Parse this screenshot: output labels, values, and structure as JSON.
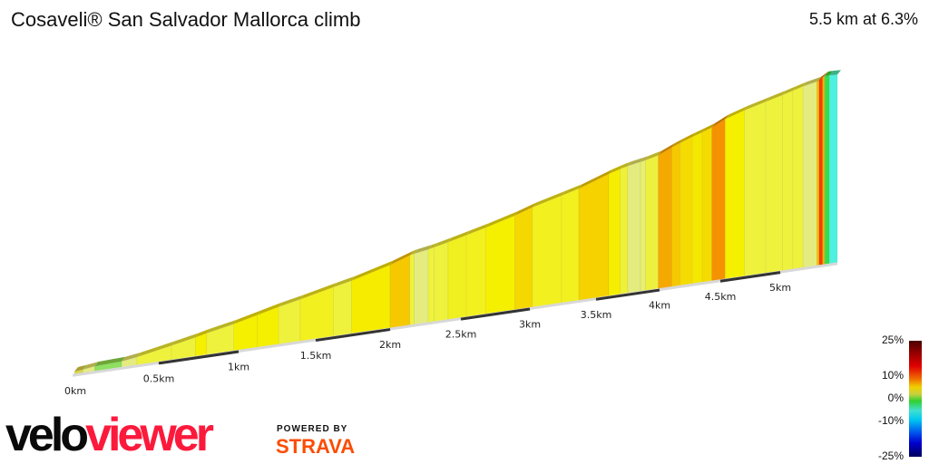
{
  "title": "Cosaveli® San Salvador Mallorca climb",
  "summary": "5.5 km at 6.3%",
  "chart_data": {
    "type": "area",
    "title": "Cosaveli® San Salvador Mallorca climb",
    "x_unit": "km",
    "x_ticks": [
      "0km",
      "0.5km",
      "1km",
      "1.5km",
      "2km",
      "2.5km",
      "3km",
      "3.5km",
      "4km",
      "4.5km",
      "5km"
    ],
    "total_distance_km": 5.5,
    "average_gradient_pct": 6.3,
    "segments": [
      {
        "start": 0.0,
        "end": 0.05,
        "gradient": 3,
        "color": "#d8d850"
      },
      {
        "start": 0.05,
        "end": 0.12,
        "gradient": 4,
        "color": "#e4ec80"
      },
      {
        "start": 0.12,
        "end": 0.28,
        "gradient": 1,
        "color": "#8ee060"
      },
      {
        "start": 0.28,
        "end": 0.37,
        "gradient": 4,
        "color": "#e4ec80"
      },
      {
        "start": 0.37,
        "end": 0.58,
        "gradient": 5.5,
        "color": "#eef23c"
      },
      {
        "start": 0.58,
        "end": 0.73,
        "gradient": 5.5,
        "color": "#eef23c"
      },
      {
        "start": 0.73,
        "end": 0.8,
        "gradient": 6.5,
        "color": "#f5f000"
      },
      {
        "start": 0.8,
        "end": 0.97,
        "gradient": 5.5,
        "color": "#eef23c"
      },
      {
        "start": 0.97,
        "end": 1.12,
        "gradient": 6.5,
        "color": "#f5f000"
      },
      {
        "start": 1.12,
        "end": 1.26,
        "gradient": 6.5,
        "color": "#f5f000"
      },
      {
        "start": 1.26,
        "end": 1.4,
        "gradient": 5.5,
        "color": "#eef23c"
      },
      {
        "start": 1.4,
        "end": 1.62,
        "gradient": 6,
        "color": "#f3f020"
      },
      {
        "start": 1.62,
        "end": 1.74,
        "gradient": 5.5,
        "color": "#eef23c"
      },
      {
        "start": 1.74,
        "end": 2.0,
        "gradient": 7,
        "color": "#f5ec00"
      },
      {
        "start": 2.0,
        "end": 2.14,
        "gradient": 8.5,
        "color": "#f5c800"
      },
      {
        "start": 2.14,
        "end": 2.17,
        "gradient": 5.5,
        "color": "#eef23c"
      },
      {
        "start": 2.17,
        "end": 2.27,
        "gradient": 4,
        "color": "#e4ec80"
      },
      {
        "start": 2.27,
        "end": 2.31,
        "gradient": 5.5,
        "color": "#eef23c"
      },
      {
        "start": 2.31,
        "end": 2.41,
        "gradient": 5.5,
        "color": "#eef23c"
      },
      {
        "start": 2.41,
        "end": 2.54,
        "gradient": 6,
        "color": "#f0f020"
      },
      {
        "start": 2.54,
        "end": 2.68,
        "gradient": 6,
        "color": "#f3f020"
      },
      {
        "start": 2.68,
        "end": 2.89,
        "gradient": 6.5,
        "color": "#f5f000"
      },
      {
        "start": 2.89,
        "end": 3.02,
        "gradient": 8,
        "color": "#f5d800"
      },
      {
        "start": 3.02,
        "end": 3.24,
        "gradient": 6,
        "color": "#f3f020"
      },
      {
        "start": 3.24,
        "end": 3.37,
        "gradient": 6,
        "color": "#f3f020"
      },
      {
        "start": 3.37,
        "end": 3.6,
        "gradient": 8,
        "color": "#f5d200"
      },
      {
        "start": 3.6,
        "end": 3.69,
        "gradient": 6.5,
        "color": "#f5ee00"
      },
      {
        "start": 3.69,
        "end": 3.75,
        "gradient": 5.5,
        "color": "#eef03a"
      },
      {
        "start": 3.75,
        "end": 3.85,
        "gradient": 4,
        "color": "#e4ec80"
      },
      {
        "start": 3.85,
        "end": 3.89,
        "gradient": 4,
        "color": "#e8ee70"
      },
      {
        "start": 3.89,
        "end": 3.99,
        "gradient": 5.5,
        "color": "#eef040"
      },
      {
        "start": 3.99,
        "end": 4.1,
        "gradient": 9.5,
        "color": "#f5a800"
      },
      {
        "start": 4.1,
        "end": 4.17,
        "gradient": 8.5,
        "color": "#f5c800"
      },
      {
        "start": 4.17,
        "end": 4.27,
        "gradient": 7.5,
        "color": "#f5dc00"
      },
      {
        "start": 4.27,
        "end": 4.35,
        "gradient": 7,
        "color": "#f5e800"
      },
      {
        "start": 4.35,
        "end": 4.43,
        "gradient": 7.5,
        "color": "#f5dc00"
      },
      {
        "start": 4.43,
        "end": 4.54,
        "gradient": 10.5,
        "color": "#f59200"
      },
      {
        "start": 4.54,
        "end": 4.7,
        "gradient": 6.5,
        "color": "#f5f000"
      },
      {
        "start": 4.7,
        "end": 4.88,
        "gradient": 5.5,
        "color": "#eef23c"
      },
      {
        "start": 4.88,
        "end": 5.02,
        "gradient": 5.5,
        "color": "#eef23c"
      },
      {
        "start": 5.02,
        "end": 5.11,
        "gradient": 5.5,
        "color": "#eef23c"
      },
      {
        "start": 5.11,
        "end": 5.2,
        "gradient": 5.5,
        "color": "#eef23c"
      },
      {
        "start": 5.2,
        "end": 5.32,
        "gradient": 4,
        "color": "#e4ec80"
      },
      {
        "start": 5.32,
        "end": 5.34,
        "gradient": 8.5,
        "color": "#f5c000"
      },
      {
        "start": 5.34,
        "end": 5.37,
        "gradient": 14,
        "color": "#f04000"
      },
      {
        "start": 5.37,
        "end": 5.39,
        "gradient": 9.5,
        "color": "#f5b000"
      },
      {
        "start": 5.39,
        "end": 5.43,
        "gradient": 0,
        "color": "#30e050"
      },
      {
        "start": 5.43,
        "end": 5.5,
        "gradient": -1,
        "color": "#50f0e0"
      }
    ]
  },
  "legend": {
    "labels": [
      "25%",
      "10%",
      "0%",
      "-10%",
      "-25%"
    ]
  },
  "branding": {
    "logo_velo": "velo",
    "logo_viewer": "viewer",
    "powered_by": "POWERED BY",
    "strava": "STRAVA"
  }
}
